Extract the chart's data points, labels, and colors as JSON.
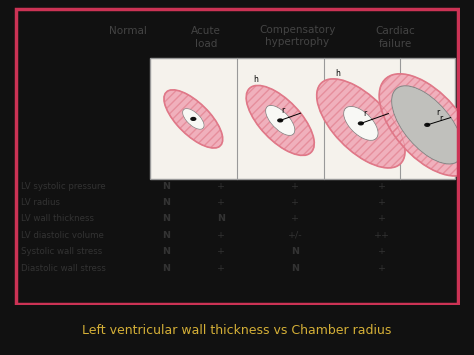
{
  "bg_outer": "#111111",
  "bg_panel": "#ccc9c0",
  "panel_border_color": "#cc3355",
  "title_text": "Left ventricular wall thickness vs Chamber radius",
  "title_color": "#d4af37",
  "title_bg": "#111111",
  "col_headers": [
    "Normal",
    "Acute\nload",
    "Compensatory\nhypertrophy",
    "Cardiac\nfailure"
  ],
  "row_labels": [
    "LV systolic pressure",
    "LV radius",
    "LV wall thickness",
    "LV diastolic volume",
    "Systolic wall stress",
    "Diastolic wall stress"
  ],
  "table_data": [
    [
      "N",
      "+",
      "+",
      "+"
    ],
    [
      "N",
      "+",
      "+",
      "+"
    ],
    [
      "N",
      "N",
      "+",
      "+"
    ],
    [
      "N",
      "+",
      "+/-",
      "++"
    ],
    [
      "N",
      "+",
      "N",
      "+"
    ],
    [
      "N",
      "+",
      "N",
      "+"
    ]
  ],
  "heart_pink": "#f0b0bc",
  "heart_pink_dark": "#e07888",
  "heart_fill_light": "#f8c8d0",
  "inner_white": "#f8f8f5",
  "inner_gray": "#c0c0bc",
  "dot_color": "#111111",
  "text_color": "#333333",
  "header_color": "#444444",
  "box_bg": "#f5f2ec",
  "box_border": "#999999",
  "divider_color": "#999999"
}
